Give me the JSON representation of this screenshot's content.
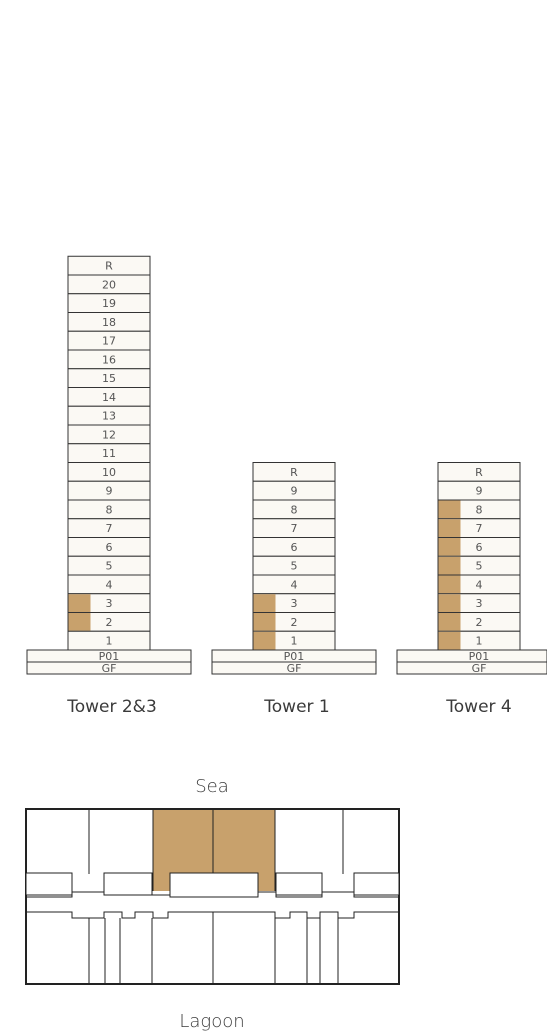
{
  "colors": {
    "highlight": "#c8a16c",
    "floor_fill": "#fbf9f4",
    "outline": "#333333",
    "label": "#555555"
  },
  "towers": [
    {
      "name": "Tower 2&3",
      "floors": [
        "R",
        "20",
        "19",
        "18",
        "17",
        "16",
        "15",
        "14",
        "13",
        "12",
        "11",
        "10",
        "9",
        "8",
        "7",
        "6",
        "5",
        "4",
        "3",
        "2",
        "1"
      ],
      "highlighted": [
        "3",
        "2"
      ],
      "podium": [
        "P01",
        "GF"
      ]
    },
    {
      "name": "Tower 1",
      "floors": [
        "R",
        "9",
        "8",
        "7",
        "6",
        "5",
        "4",
        "3",
        "2",
        "1"
      ],
      "highlighted": [
        "3",
        "2",
        "1"
      ],
      "podium": [
        "P01",
        "GF"
      ]
    },
    {
      "name": "Tower 4",
      "floors": [
        "R",
        "9",
        "8",
        "7",
        "6",
        "5",
        "4",
        "3",
        "2",
        "1"
      ],
      "highlighted": [
        "8",
        "7",
        "6",
        "5",
        "4",
        "3",
        "2",
        "1"
      ],
      "podium": [
        "P01",
        "GF"
      ]
    }
  ],
  "plan": {
    "top_label": "Sea",
    "bottom_label": "Lagoon"
  }
}
